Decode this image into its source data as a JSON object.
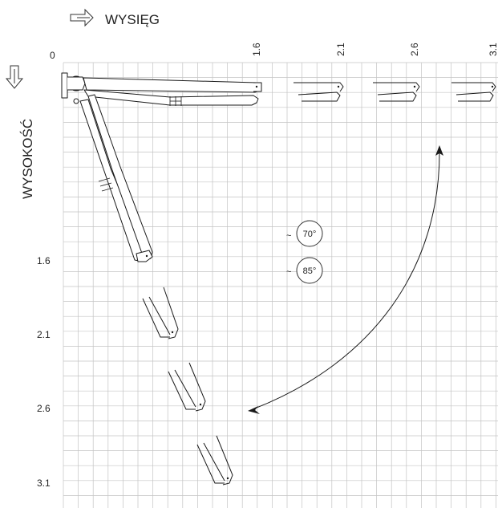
{
  "axes": {
    "reach_label": "WYSIĘG",
    "height_label": "WYSOKOŚĆ",
    "origin_label": "0",
    "reach_ticks": [
      "1.6",
      "2.1",
      "2.6",
      "3.1"
    ],
    "height_ticks": [
      "1.6",
      "2.1",
      "2.6",
      "3.1"
    ]
  },
  "angles": [
    {
      "prefix": "~",
      "value": "70°"
    },
    {
      "prefix": "~",
      "value": "85°"
    }
  ],
  "icons": {
    "reach_arrow": "right-arrow-outline-icon",
    "height_arrow": "down-arrow-outline-icon",
    "swing_arrow": "curved-double-arrow-icon"
  },
  "colors": {
    "grid": "#c4c4c4",
    "line": "#1a1a1a",
    "text": "#222222"
  }
}
